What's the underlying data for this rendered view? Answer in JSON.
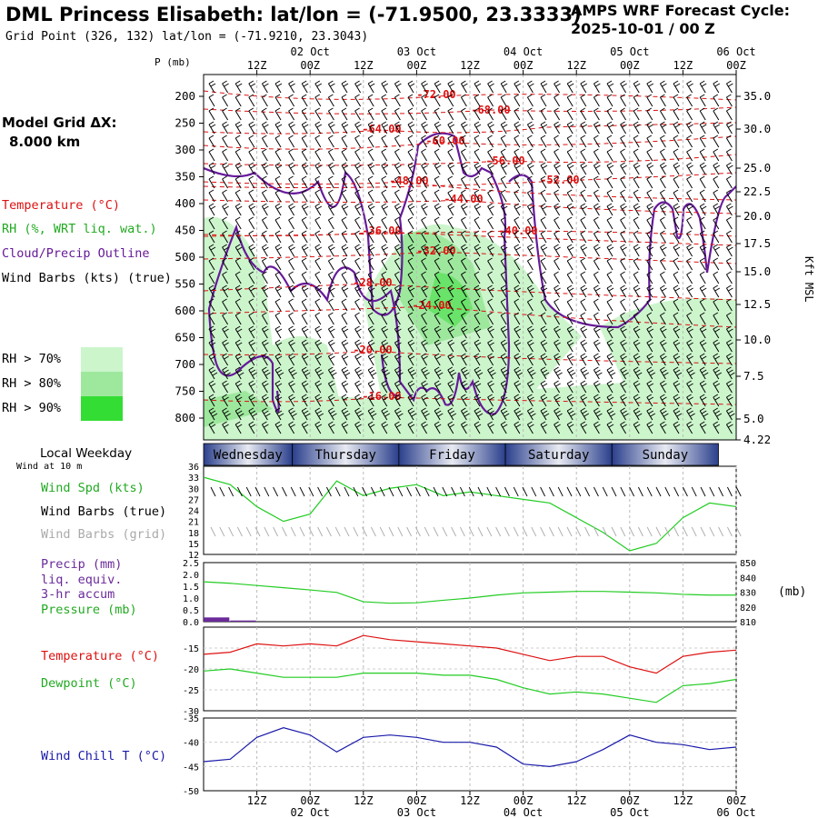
{
  "header": {
    "title": "DML Princess Elisabeth:  lat/lon = (-71.9500, 23.3333)",
    "subtitle": "Grid Point (326, 132) lat/lon = (-71.9210, 23.3043)",
    "cycle_line1": "AMPS WRF Forecast Cycle:",
    "cycle_line2": "2025-10-01 / 00  Z"
  },
  "left_panel": {
    "model_grid_line1": "Model Grid ΔX:",
    "model_grid_line2": "8.000 km",
    "legend_temperature": "Temperature (°C)",
    "legend_rh": "RH (%, WRT liq. wat.)",
    "legend_cloud": "Cloud/Precip Outline",
    "legend_wind": "Wind Barbs (kts) (true)",
    "rh_levels": [
      {
        "label": "RH > 70%",
        "color": "#ccf5cc"
      },
      {
        "label": "RH > 80%",
        "color": "#9ee89e"
      },
      {
        "label": "RH > 90%",
        "color": "#33dd33"
      }
    ],
    "pressure_unit": "P (mb)",
    "local_weekday": "Local Weekday",
    "wind_at_10m": "Wind at 10 m",
    "panel1_labels": [
      "Wind Spd (kts)",
      "Wind Barbs (true)",
      "Wind Barbs (grid)"
    ],
    "panel2_labels": [
      "Precip (mm)",
      "liq. equiv.",
      "3-hr accum",
      "Pressure (mb)"
    ],
    "panel3_labels": [
      "Temperature (°C)",
      "Dewpoint (°C)"
    ],
    "panel4_labels": [
      "Wind Chill T (°C)"
    ],
    "right_unit_kft": "Kft MSL",
    "right_unit_mb": "(mb)"
  },
  "colors": {
    "temperature": "#dd1111",
    "rh": "#22aa22",
    "cloud": "#661a99",
    "wind_speed": "#22cc22",
    "precip": "#6a2a9a",
    "dewpoint": "#22cc22",
    "wind_chill": "#1a1aaa",
    "weekday_band": "#2a3f8c",
    "grid_barbs": "#aaaaaa"
  },
  "chart_data": [
    {
      "type": "line",
      "name": "time-height cross section",
      "x_ticks_top": [
        "12Z",
        "00Z",
        "12Z",
        "00Z",
        "12Z",
        "00Z",
        "12Z",
        "00Z",
        "12Z",
        "00Z"
      ],
      "x_dates_top": [
        "02 Oct",
        "03 Oct",
        "04 Oct",
        "05 Oct",
        "06 Oct"
      ],
      "x_ticks_bottom": [
        "12Z",
        "00Z",
        "12Z",
        "00Z",
        "12Z",
        "00Z",
        "12Z",
        "00Z",
        "12Z",
        "00Z"
      ],
      "x_dates_bottom": [
        "02 Oct",
        "03 Oct",
        "04 Oct",
        "05 Oct",
        "06 Oct"
      ],
      "pressure_levels": [
        200,
        250,
        300,
        350,
        400,
        450,
        500,
        550,
        600,
        650,
        700,
        750,
        800
      ],
      "height_kft": [
        35.0,
        30.0,
        25.0,
        22.5,
        20.0,
        17.5,
        15.0,
        12.5,
        10.0,
        7.5,
        5.0,
        4.22
      ],
      "temperature_contours": [
        "-72.00",
        "-68.00",
        "-64.00",
        "-60.00",
        "-56.00",
        "-52.00",
        "-48.00",
        "-44.00",
        "-40.00",
        "-36.00",
        "-32.00",
        "-28.00",
        "-24.00",
        "-20.00",
        "-16.00"
      ]
    },
    {
      "type": "line",
      "name": "weekday strip",
      "days": [
        "Wednesday",
        "Thursday",
        "Friday",
        "Saturday",
        "Sunday"
      ]
    },
    {
      "type": "line",
      "ylabel": "Wind Spd (kts)",
      "ylim": [
        12,
        36
      ],
      "yticks": [
        12,
        15,
        18,
        21,
        24,
        27,
        30,
        33,
        36
      ],
      "x_hours": [
        0,
        6,
        12,
        18,
        24,
        30,
        36,
        42,
        48,
        54,
        60,
        66,
        72,
        78,
        84,
        90,
        96,
        102,
        108,
        114,
        120
      ],
      "series": [
        {
          "values": [
            33,
            31,
            25,
            21,
            23,
            32,
            28,
            30,
            31,
            28,
            29,
            28,
            27,
            26,
            22,
            18,
            13,
            15,
            22,
            26,
            25
          ]
        }
      ]
    },
    {
      "type": "line",
      "ylim_left": [
        0.0,
        2.5
      ],
      "yticks_left": [
        0.0,
        0.5,
        1.0,
        1.5,
        2.0,
        2.5
      ],
      "yticks_right": [
        810,
        820,
        830,
        840,
        850
      ],
      "x_hours": [
        0,
        6,
        12,
        18,
        24,
        30,
        36,
        42,
        48,
        54,
        60,
        66,
        72,
        78,
        84,
        90,
        96,
        102,
        108,
        114,
        120
      ],
      "series": [
        {
          "name": "Pressure (mb)",
          "values": [
            837,
            836,
            834.5,
            833,
            831.5,
            829.8,
            823.5,
            822.5,
            822.8,
            824.5,
            826,
            828,
            829.5,
            830,
            830.5,
            830.5,
            830,
            829.5,
            828.5,
            828,
            828
          ]
        },
        {
          "name": "Precip (mm)",
          "values": [
            0.18,
            0.05,
            0,
            0,
            0,
            0,
            0,
            0,
            0,
            0,
            0,
            0,
            0,
            0,
            0,
            0,
            0,
            0,
            0,
            0,
            0
          ]
        }
      ]
    },
    {
      "type": "line",
      "ylim": [
        -30,
        -10
      ],
      "yticks": [
        -30,
        -25,
        -20,
        -15
      ],
      "x_hours": [
        0,
        6,
        12,
        18,
        24,
        30,
        36,
        42,
        48,
        54,
        60,
        66,
        72,
        78,
        84,
        90,
        96,
        102,
        108,
        114,
        120
      ],
      "series": [
        {
          "name": "Temperature (°C)",
          "values": [
            -16.5,
            -16,
            -14,
            -14.5,
            -14,
            -14.5,
            -12,
            -13,
            -13.5,
            -14,
            -14.5,
            -15,
            -16.5,
            -18,
            -17,
            -17,
            -19.5,
            -21,
            -17,
            -16,
            -15.5
          ]
        },
        {
          "name": "Dewpoint (°C)",
          "values": [
            -20.5,
            -20,
            -21,
            -22,
            -22,
            -22,
            -21,
            -21,
            -21,
            -21.5,
            -21.5,
            -22.5,
            -24.5,
            -26,
            -25.5,
            -26,
            -27,
            -28,
            -24,
            -23.5,
            -22.5
          ]
        }
      ]
    },
    {
      "type": "line",
      "ylim": [
        -50,
        -35
      ],
      "yticks": [
        -50,
        -45,
        -40,
        -35
      ],
      "x_hours": [
        0,
        6,
        12,
        18,
        24,
        30,
        36,
        42,
        48,
        54,
        60,
        66,
        72,
        78,
        84,
        90,
        96,
        102,
        108,
        114,
        120
      ],
      "series": [
        {
          "name": "Wind Chill T (°C)",
          "values": [
            -44,
            -43.5,
            -39,
            -37,
            -38.5,
            -42,
            -39,
            -38.5,
            -39,
            -40,
            -40,
            -41,
            -44.5,
            -45,
            -44,
            -41.5,
            -38.5,
            -40,
            -40.5,
            -41.5,
            -41
          ]
        }
      ]
    }
  ]
}
